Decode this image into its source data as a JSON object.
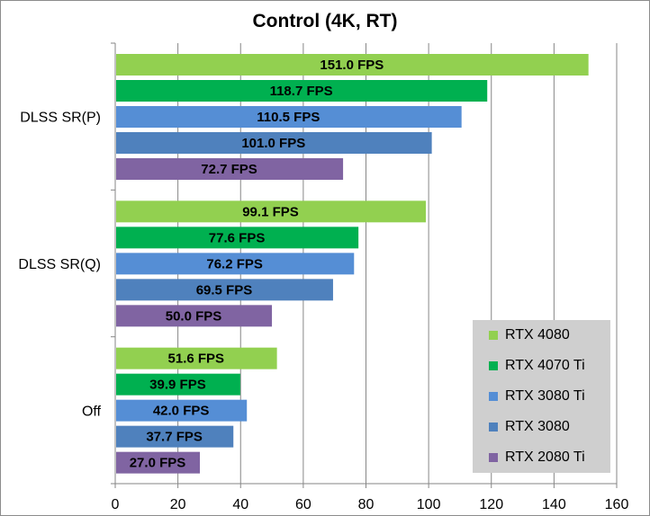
{
  "chart_data": {
    "type": "bar",
    "orientation": "horizontal",
    "title": "Control (4K, RT)",
    "xlabel": "",
    "ylabel": "",
    "xlim": [
      0,
      160
    ],
    "x_ticks": [
      0,
      20,
      40,
      60,
      80,
      100,
      120,
      140,
      160
    ],
    "grid": "vertical",
    "legend_position": "bottom-right",
    "categories": [
      "DLSS SR(P)",
      "DLSS SR(Q)",
      "Off"
    ],
    "series": [
      {
        "name": "RTX 4080",
        "color": "#92d050",
        "values": [
          151.0,
          99.1,
          51.6
        ],
        "labels": [
          "151.0 FPS",
          "99.1 FPS",
          "51.6 FPS"
        ]
      },
      {
        "name": "RTX 4070 Ti",
        "color": "#00b050",
        "values": [
          118.7,
          77.6,
          39.9
        ],
        "labels": [
          "118.7 FPS",
          "77.6 FPS",
          "39.9 FPS"
        ]
      },
      {
        "name": "RTX 3080 Ti",
        "color": "#558ed5",
        "values": [
          110.5,
          76.2,
          42.0
        ],
        "labels": [
          "110.5 FPS",
          "76.2 FPS",
          "42.0 FPS"
        ]
      },
      {
        "name": "RTX 3080",
        "color": "#4f81bd",
        "values": [
          101.0,
          69.5,
          37.7
        ],
        "labels": [
          "101.0 FPS",
          "69.5 FPS",
          "37.7 FPS"
        ]
      },
      {
        "name": "RTX 2080 Ti",
        "color": "#8064a2",
        "values": [
          72.7,
          50.0,
          27.0
        ],
        "labels": [
          "72.7 FPS",
          "50.0 FPS",
          "27.0 FPS"
        ]
      }
    ]
  }
}
